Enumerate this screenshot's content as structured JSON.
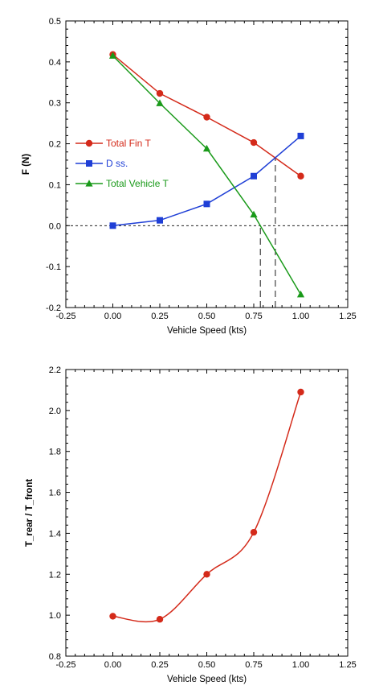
{
  "chart_data": [
    {
      "type": "line",
      "xlabel": "Vehicle Speed (kts)",
      "ylabel": "F (N)",
      "xlim": [
        -0.25,
        1.25
      ],
      "ylim": [
        -0.2,
        0.5
      ],
      "xticks": [
        "-0.25",
        "0.00",
        "0.25",
        "0.50",
        "0.75",
        "1.00",
        "1.25"
      ],
      "yticks": [
        "-0.2",
        "-0.1",
        "0.0",
        "0.1",
        "0.2",
        "0.3",
        "0.4",
        "0.5"
      ],
      "grid": false,
      "legend_position": "middle-left",
      "x": [
        0.0,
        0.25,
        0.5,
        0.75,
        1.0
      ],
      "series": [
        {
          "name": "Total Fin T",
          "color": "#d42a1a",
          "marker": "circle",
          "values": [
            0.418,
            0.323,
            0.265,
            0.203,
            0.121
          ]
        },
        {
          "name": "D ss.",
          "color": "#1f3fd6",
          "marker": "square",
          "values": [
            0.0,
            0.013,
            0.053,
            0.121,
            0.219
          ]
        },
        {
          "name": "Total Vehicle T",
          "color": "#1a9a1a",
          "marker": "triangle",
          "values": [
            0.415,
            0.299,
            0.188,
            0.027,
            -0.168
          ]
        }
      ],
      "reference_lines": {
        "horizontal_dashed": [
          0.0
        ],
        "vertical_dashed": [
          {
            "x": 0.785,
            "from_y": -0.2,
            "to_y": 0.0
          },
          {
            "x": 0.865,
            "from_y": -0.2,
            "to_y": 0.168
          }
        ]
      }
    },
    {
      "type": "line",
      "xlabel": "Vehicle Speed (kts)",
      "ylabel": "T_rear / T_front",
      "xlim": [
        -0.25,
        1.25
      ],
      "ylim": [
        0.8,
        2.2
      ],
      "xticks": [
        "-0.25",
        "0.00",
        "0.25",
        "0.50",
        "0.75",
        "1.00",
        "1.25"
      ],
      "yticks": [
        "0.8",
        "1.0",
        "1.2",
        "1.4",
        "1.6",
        "1.8",
        "2.0",
        "2.2"
      ],
      "grid": false,
      "x": [
        0.0,
        0.25,
        0.5,
        0.75,
        1.0
      ],
      "series": [
        {
          "color": "#d42a1a",
          "marker": "circle",
          "smooth": true,
          "values": [
            0.995,
            0.98,
            1.2,
            1.405,
            2.09
          ]
        }
      ]
    }
  ]
}
